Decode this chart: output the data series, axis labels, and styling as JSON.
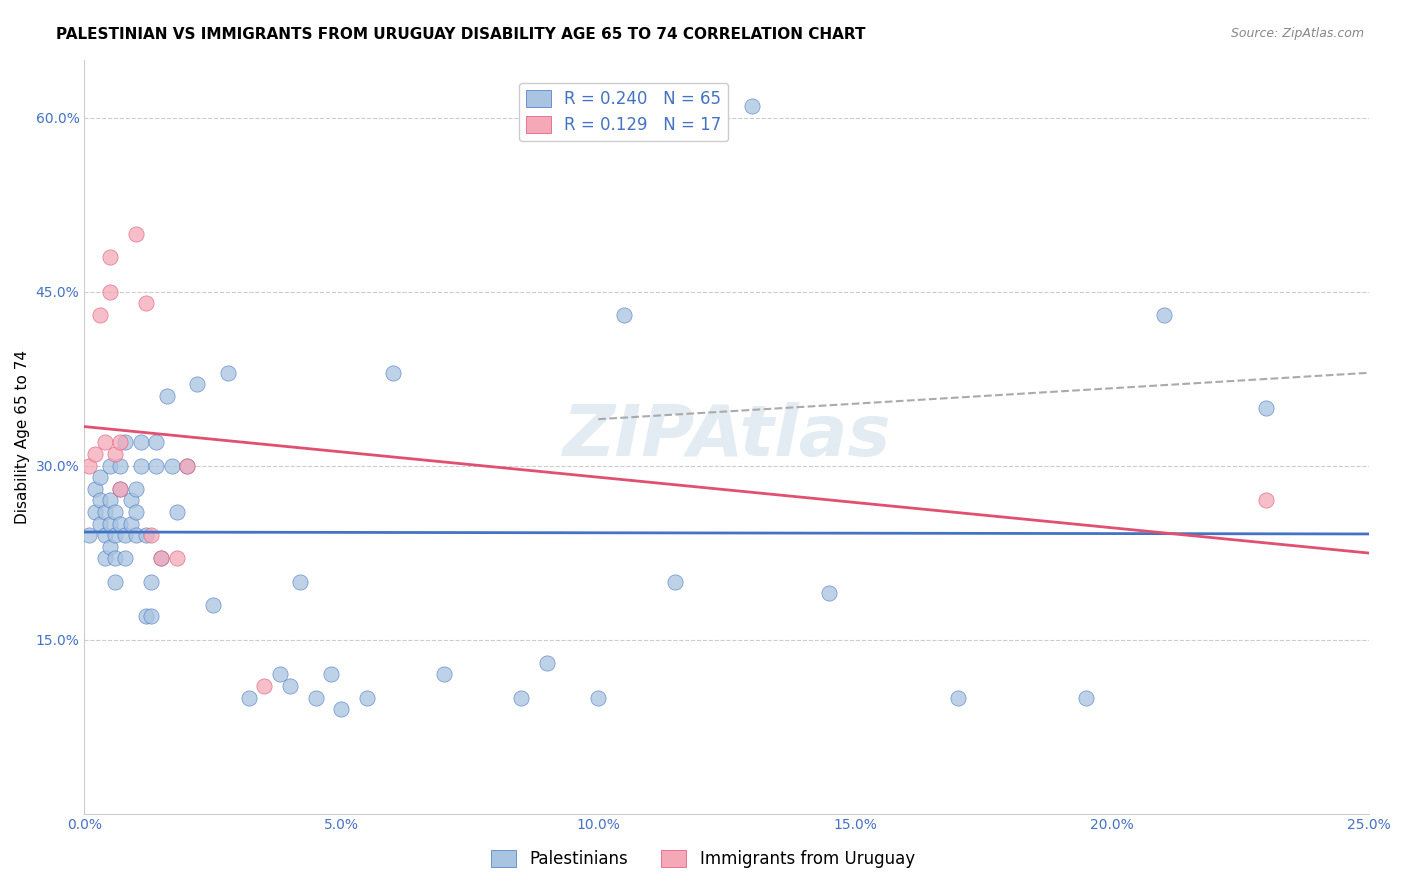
{
  "title": "PALESTINIAN VS IMMIGRANTS FROM URUGUAY DISABILITY AGE 65 TO 74 CORRELATION CHART",
  "source": "Source: ZipAtlas.com",
  "xlabel": "",
  "ylabel": "Disability Age 65 to 74",
  "xlim": [
    0,
    0.25
  ],
  "ylim": [
    0,
    0.65
  ],
  "xticks": [
    0.0,
    0.05,
    0.1,
    0.15,
    0.2,
    0.25
  ],
  "yticks": [
    0.15,
    0.3,
    0.45,
    0.6
  ],
  "ytick_labels": [
    "15.0%",
    "30.0%",
    "45.0%",
    "60.0%"
  ],
  "xtick_labels": [
    "0.0%",
    "5.0%",
    "10.0%",
    "15.0%",
    "20.0%",
    "25.0%"
  ],
  "r_blue": 0.24,
  "n_blue": 65,
  "r_pink": 0.129,
  "n_pink": 17,
  "blue_color": "#a8c4e0",
  "pink_color": "#f4a8b8",
  "blue_line_color": "#4472c4",
  "pink_line_color": "#e05070",
  "dash_line_color": "#aaaaaa",
  "legend_label_blue": "Palestinians",
  "legend_label_pink": "Immigrants from Uruguay",
  "blue_scatter_x": [
    0.001,
    0.002,
    0.002,
    0.003,
    0.003,
    0.003,
    0.004,
    0.004,
    0.004,
    0.005,
    0.005,
    0.005,
    0.005,
    0.006,
    0.006,
    0.006,
    0.006,
    0.007,
    0.007,
    0.007,
    0.008,
    0.008,
    0.008,
    0.009,
    0.009,
    0.01,
    0.01,
    0.01,
    0.011,
    0.011,
    0.012,
    0.012,
    0.013,
    0.013,
    0.014,
    0.014,
    0.015,
    0.016,
    0.017,
    0.018,
    0.02,
    0.022,
    0.025,
    0.028,
    0.032,
    0.038,
    0.04,
    0.042,
    0.045,
    0.048,
    0.05,
    0.055,
    0.06,
    0.07,
    0.085,
    0.09,
    0.1,
    0.105,
    0.115,
    0.13,
    0.145,
    0.17,
    0.195,
    0.21,
    0.23
  ],
  "blue_scatter_y": [
    0.24,
    0.26,
    0.28,
    0.25,
    0.27,
    0.29,
    0.22,
    0.24,
    0.26,
    0.23,
    0.25,
    0.27,
    0.3,
    0.2,
    0.22,
    0.24,
    0.26,
    0.25,
    0.28,
    0.3,
    0.22,
    0.24,
    0.32,
    0.25,
    0.27,
    0.24,
    0.26,
    0.28,
    0.3,
    0.32,
    0.17,
    0.24,
    0.17,
    0.2,
    0.3,
    0.32,
    0.22,
    0.36,
    0.3,
    0.26,
    0.3,
    0.37,
    0.18,
    0.38,
    0.1,
    0.12,
    0.11,
    0.2,
    0.1,
    0.12,
    0.09,
    0.1,
    0.38,
    0.12,
    0.1,
    0.13,
    0.1,
    0.43,
    0.2,
    0.61,
    0.19,
    0.1,
    0.1,
    0.43,
    0.35
  ],
  "pink_scatter_x": [
    0.001,
    0.002,
    0.003,
    0.004,
    0.005,
    0.005,
    0.006,
    0.007,
    0.007,
    0.01,
    0.012,
    0.013,
    0.015,
    0.018,
    0.02,
    0.035,
    0.23
  ],
  "pink_scatter_y": [
    0.3,
    0.31,
    0.43,
    0.32,
    0.45,
    0.48,
    0.31,
    0.28,
    0.32,
    0.5,
    0.44,
    0.24,
    0.22,
    0.22,
    0.3,
    0.11,
    0.27
  ],
  "watermark": "ZIPAtlas",
  "title_fontsize": 11,
  "axis_label_fontsize": 11,
  "tick_fontsize": 10,
  "legend_fontsize": 12
}
